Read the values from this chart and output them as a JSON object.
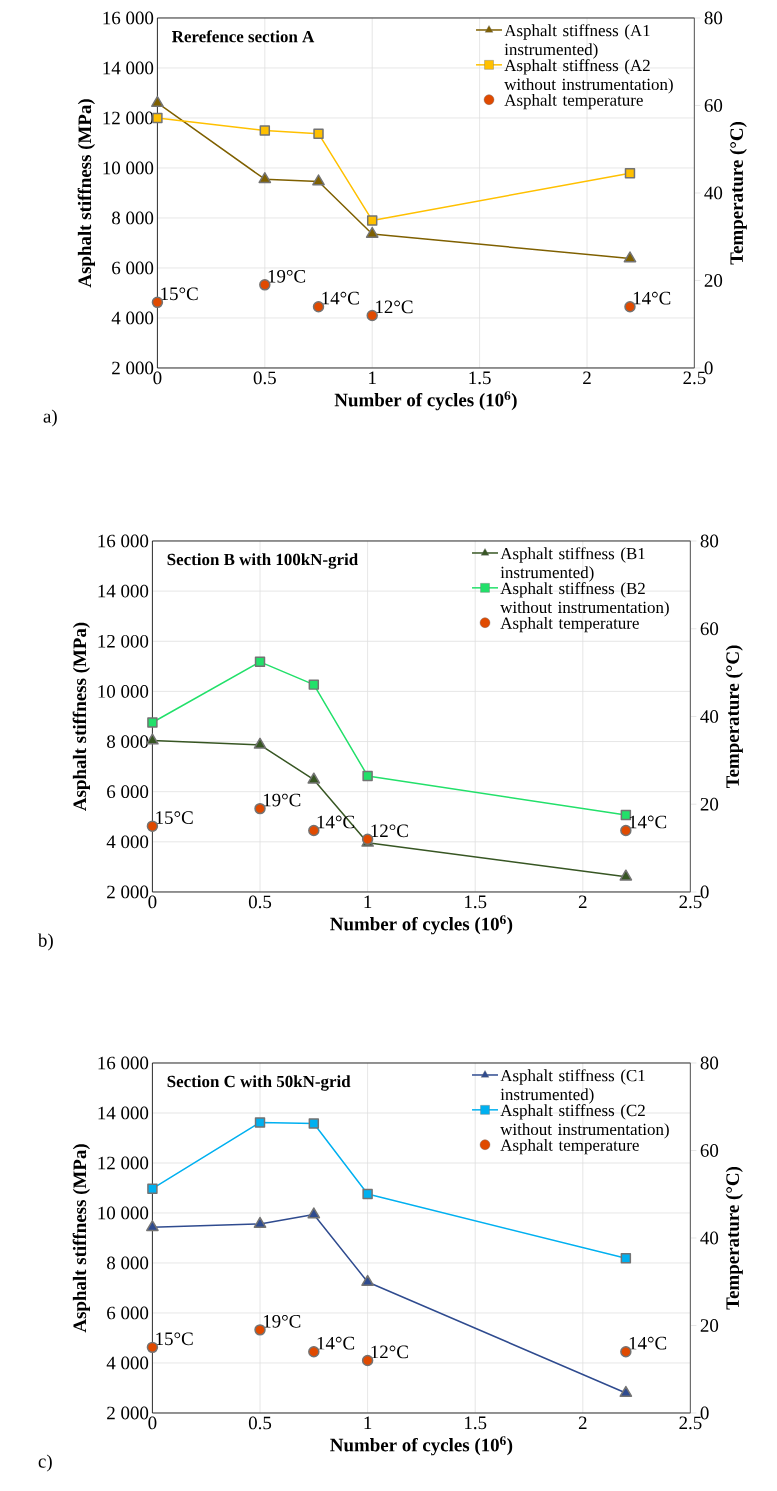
{
  "chart_data": [
    {
      "type": "line",
      "title": "Rerefence section A",
      "xlabel": "Number of cycles (10$^{6}$)",
      "ylabel": "Asphalt stiffness (MPa)",
      "y2label": "Temperature (°C)",
      "annotations": [
        "a)"
      ],
      "x": [
        0,
        0.5,
        0.75,
        1,
        2.2
      ],
      "series": [
        {
          "name": "Asphalt stiffness (A1 instrumented)",
          "color": "#7f6000",
          "marker": "triangle",
          "values": [
            12600,
            9550,
            9460,
            7360,
            6380
          ]
        },
        {
          "name": "Asphalt stiffness (A2 without instrumentation)",
          "color": "#ffc000",
          "marker": "square",
          "values": [
            12000,
            11500,
            11370,
            7900,
            9790
          ]
        },
        {
          "name": "Asphalt temperature",
          "type": "scatter",
          "axis": "y2",
          "color": "#e04a00",
          "marker": "circle",
          "values": [
            15,
            19,
            14,
            12,
            14
          ],
          "value_labels": [
            "15°C",
            "19°C",
            "14°C",
            "12°C",
            "14°C"
          ]
        }
      ],
      "xlim": [
        0,
        2.5
      ],
      "xticks": [
        0,
        0.5,
        1,
        1.5,
        2,
        2.5
      ],
      "ylim": [
        2000,
        16000
      ],
      "yticks": [
        {
          "value": 2000,
          "label": "2 000"
        },
        {
          "value": 4000,
          "label": "4 000"
        },
        {
          "value": 6000,
          "label": "6 000"
        },
        {
          "value": 8000,
          "label": "8 000"
        },
        {
          "value": 10000,
          "label": "10 000"
        },
        {
          "value": 12000,
          "label": "12 000"
        },
        {
          "value": 14000,
          "label": "14 000"
        },
        {
          "value": 16000,
          "label": "16 000"
        }
      ],
      "y2lim": [
        0,
        80
      ],
      "y2ticks": [
        0,
        20,
        40,
        60,
        80
      ],
      "grid": true,
      "legend": "top right"
    },
    {
      "type": "line",
      "title": "Section B with 100kN-grid",
      "xlabel": "Number of cycles (10$^{6}$)",
      "ylabel": "Asphalt stiffness (MPa)",
      "y2label": "Temperature (°C)",
      "annotations": [
        "b)"
      ],
      "x": [
        0,
        0.5,
        0.75,
        1,
        2.2
      ],
      "series": [
        {
          "name": "Asphalt stiffness (B1 instrumented)",
          "color": "#375623",
          "marker": "triangle",
          "values": [
            8040,
            7870,
            6480,
            3960,
            2610
          ]
        },
        {
          "name": "Asphalt stiffness (B2 without instrumentation)",
          "color": "#22e06a",
          "marker": "square",
          "values": [
            8760,
            11180,
            10270,
            6630,
            5070
          ]
        },
        {
          "name": "Asphalt temperature",
          "type": "scatter",
          "axis": "y2",
          "color": "#e04a00",
          "marker": "circle",
          "values": [
            15,
            19,
            14,
            12,
            14
          ],
          "value_labels": [
            "15°C",
            "19°C",
            "14°C",
            "12°C",
            "14°C"
          ]
        }
      ],
      "xlim": [
        0,
        2.5
      ],
      "xticks": [
        0,
        0.5,
        1,
        1.5,
        2,
        2.5
      ],
      "ylim": [
        2000,
        16000
      ],
      "yticks": [
        {
          "value": 2000,
          "label": "2 000"
        },
        {
          "value": 4000,
          "label": "4 000"
        },
        {
          "value": 6000,
          "label": "6 000"
        },
        {
          "value": 8000,
          "label": "8 000"
        },
        {
          "value": 10000,
          "label": "10 000"
        },
        {
          "value": 12000,
          "label": "12 000"
        },
        {
          "value": 14000,
          "label": "14 000"
        },
        {
          "value": 16000,
          "label": "16 000"
        }
      ],
      "y2lim": [
        0,
        80
      ],
      "y2ticks": [
        0,
        20,
        40,
        60,
        80
      ],
      "grid": true,
      "legend": "top right"
    },
    {
      "type": "line",
      "title": "Section C with 50kN-grid",
      "xlabel": "Number of cycles (10$^{6}$)",
      "ylabel": "Asphalt stiffness (MPa)",
      "y2label": "Temperature (°C)",
      "annotations": [
        "c)"
      ],
      "x": [
        0,
        0.5,
        0.75,
        1,
        2.2
      ],
      "series": [
        {
          "name": "Asphalt stiffness (C1 instrumented)",
          "color": "#2f4b8f",
          "marker": "triangle",
          "values": [
            9430,
            9560,
            9940,
            7240,
            2800
          ]
        },
        {
          "name": "Asphalt stiffness (C2 without instrumentation)",
          "color": "#00b0f0",
          "marker": "square",
          "values": [
            10970,
            13620,
            13580,
            10760,
            8190
          ]
        },
        {
          "name": "Asphalt temperature",
          "type": "scatter",
          "axis": "y2",
          "color": "#e04a00",
          "marker": "circle",
          "values": [
            15,
            19,
            14,
            12,
            14
          ],
          "value_labels": [
            "15°C",
            "19°C",
            "14°C",
            "12°C",
            "14°C"
          ]
        }
      ],
      "xlim": [
        0,
        2.5
      ],
      "xticks": [
        0,
        0.5,
        1,
        1.5,
        2,
        2.5
      ],
      "ylim": [
        2000,
        16000
      ],
      "yticks": [
        {
          "value": 2000,
          "label": "2 000"
        },
        {
          "value": 4000,
          "label": "4 000"
        },
        {
          "value": 6000,
          "label": "6 000"
        },
        {
          "value": 8000,
          "label": "8 000"
        },
        {
          "value": 10000,
          "label": "10 000"
        },
        {
          "value": 12000,
          "label": "12 000"
        },
        {
          "value": 14000,
          "label": "14 000"
        },
        {
          "value": 16000,
          "label": "16 000"
        }
      ],
      "y2lim": [
        0,
        80
      ],
      "y2ticks": [
        0,
        20,
        40,
        60,
        80
      ],
      "grid": true,
      "legend": "top right"
    }
  ]
}
